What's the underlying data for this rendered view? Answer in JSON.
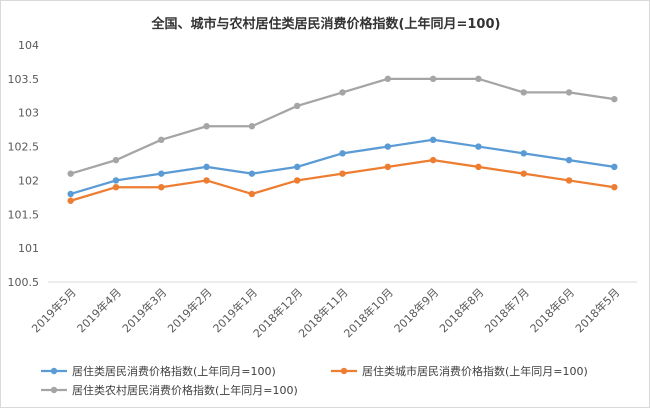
{
  "chart_data": {
    "type": "line",
    "title": "全国、城市与农村居住类居民消费价格指数(上年同月=100)",
    "xlabel": "",
    "ylabel": "",
    "categories": [
      "2019年5月",
      "2019年4月",
      "2019年3月",
      "2019年2月",
      "2019年1月",
      "2018年12月",
      "2018年11月",
      "2018年10月",
      "2018年9月",
      "2018年8月",
      "2018年7月",
      "2018年6月",
      "2018年5月"
    ],
    "ylim": [
      100.5,
      104
    ],
    "yticks": [
      "100.5",
      "101",
      "101.5",
      "102",
      "102.5",
      "103",
      "103.5",
      "104"
    ],
    "grid": false,
    "legend_position": "bottom",
    "series": [
      {
        "name": "居住类居民消费价格指数(上年同月=100)",
        "color": "#5b9bd5",
        "values": [
          101.8,
          102.0,
          102.1,
          102.2,
          102.1,
          102.2,
          102.4,
          102.5,
          102.6,
          102.5,
          102.4,
          102.3,
          102.2
        ]
      },
      {
        "name": "居住类城市居民消费价格指数(上年同月=100)",
        "color": "#ed7d31",
        "values": [
          101.7,
          101.9,
          101.9,
          102.0,
          101.8,
          102.0,
          102.1,
          102.2,
          102.3,
          102.2,
          102.1,
          102.0,
          101.9
        ]
      },
      {
        "name": "居住类农村居民消费价格指数(上年同月=100)",
        "color": "#a5a5a5",
        "values": [
          102.1,
          102.3,
          102.6,
          102.8,
          102.8,
          103.1,
          103.3,
          103.5,
          103.5,
          103.5,
          103.3,
          103.3,
          103.2
        ]
      }
    ]
  }
}
